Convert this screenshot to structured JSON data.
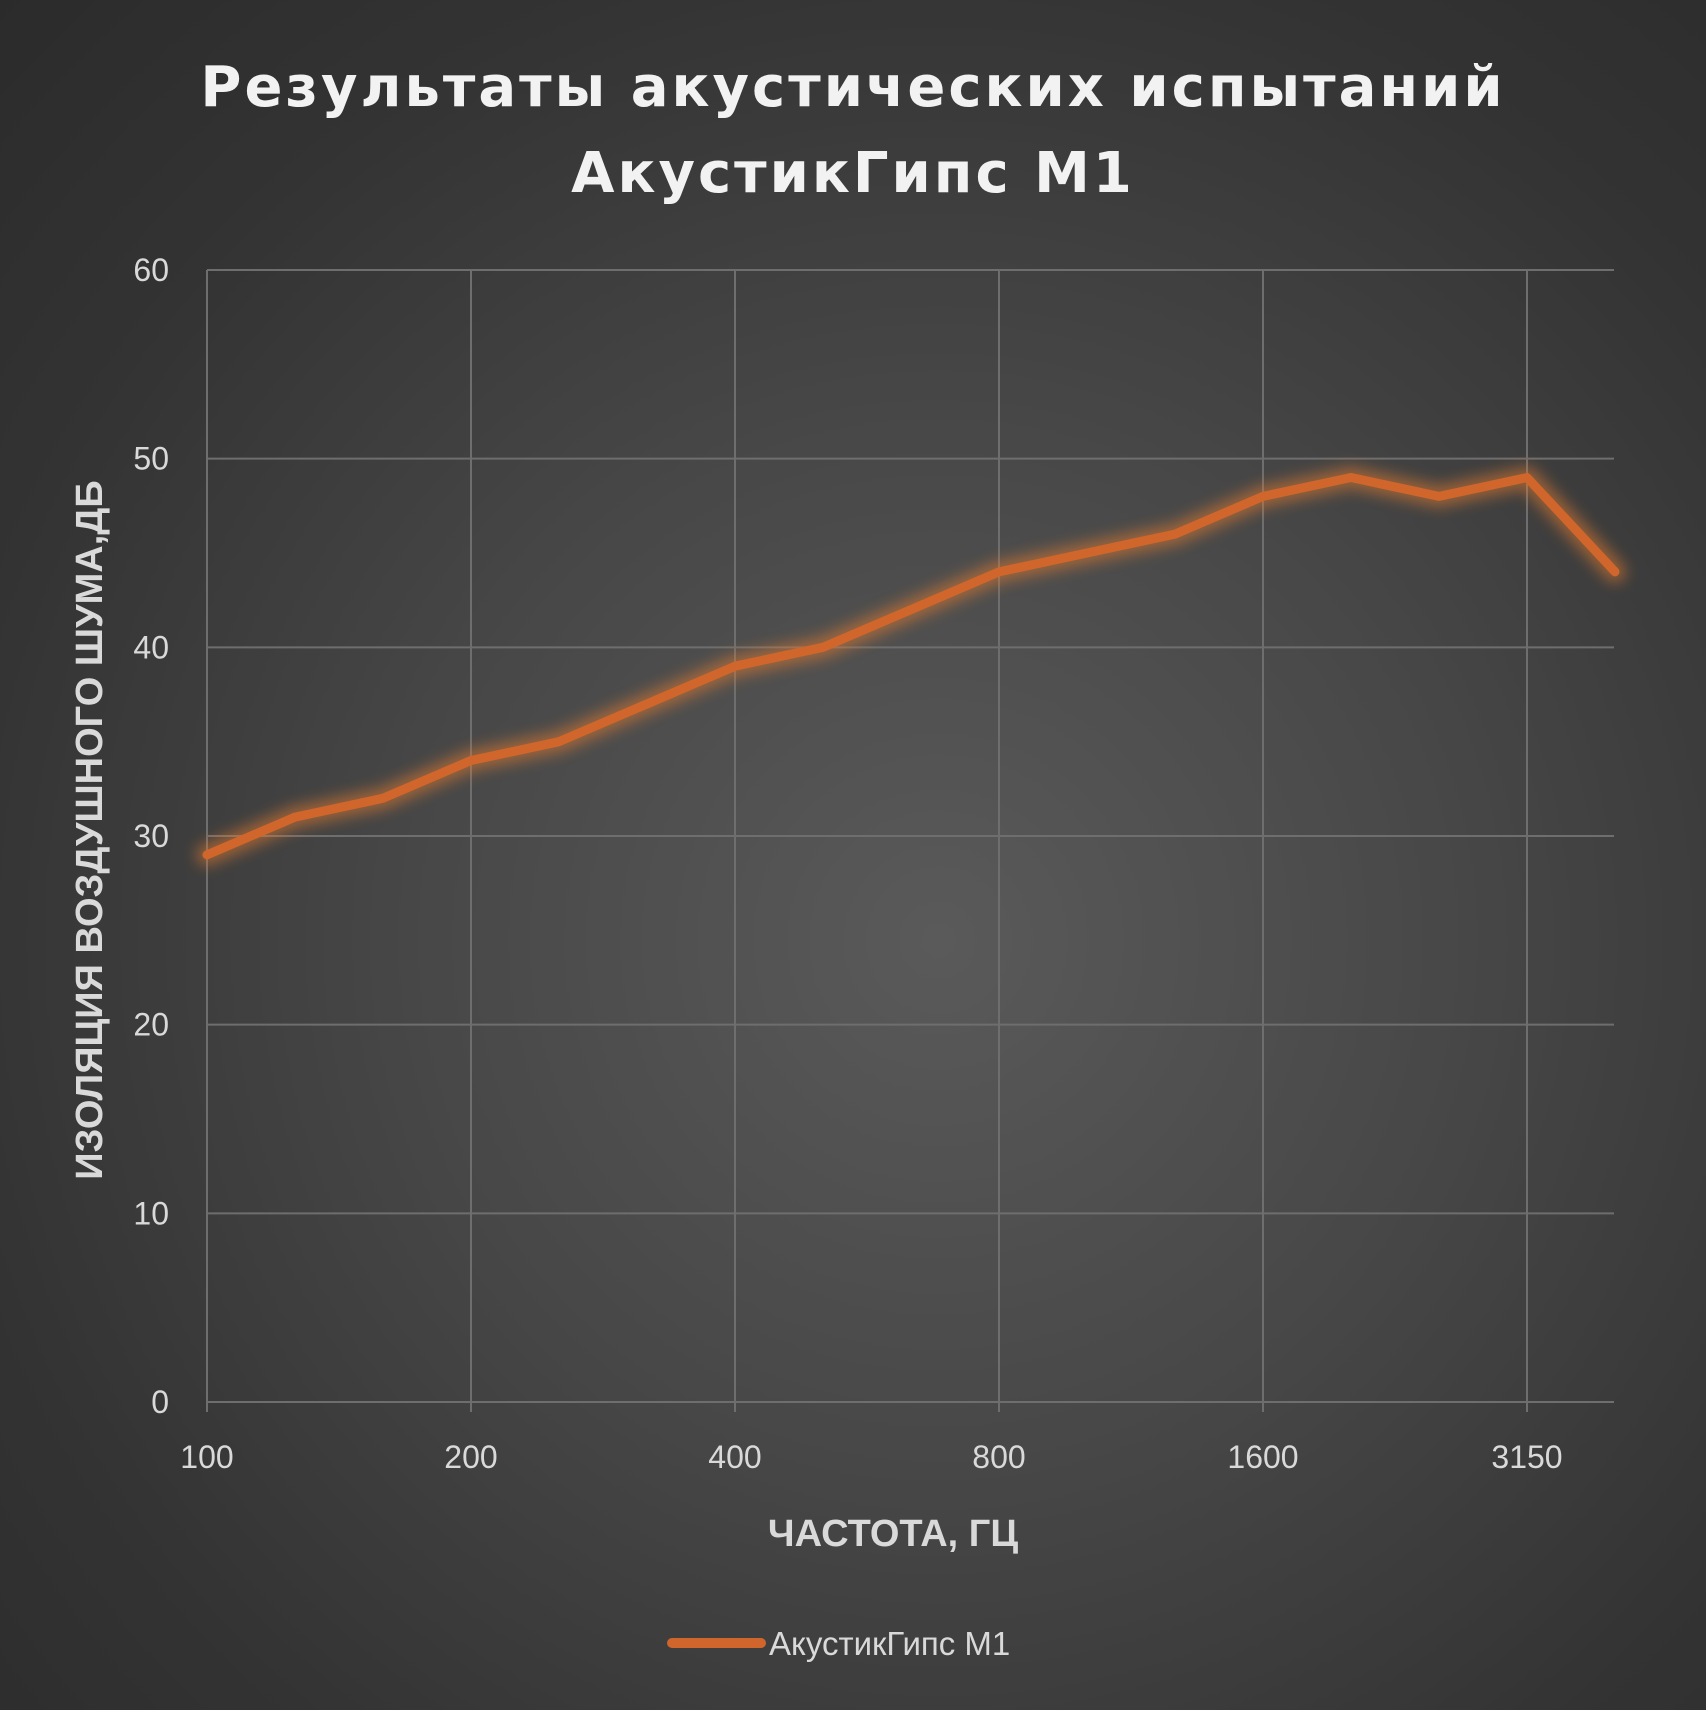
{
  "chart_data": {
    "type": "line",
    "title_lines": [
      "Результаты акустических испытаний",
      "АкустикГипс М1"
    ],
    "xlabel": "ЧАСТОТА, ГЦ",
    "ylabel": "ИЗОЛЯЦИЯ ВОЗДУШНОГО ШУМА,ДБ",
    "ylim": [
      0,
      60
    ],
    "yticks": [
      0,
      10,
      20,
      30,
      40,
      50,
      60
    ],
    "x_tick_labels": [
      {
        "index": 0,
        "label": "100"
      },
      {
        "index": 3,
        "label": "200"
      },
      {
        "index": 6,
        "label": "400"
      },
      {
        "index": 9,
        "label": "800"
      },
      {
        "index": 12,
        "label": "1600"
      },
      {
        "index": 15,
        "label": "3150"
      }
    ],
    "grid": true,
    "legend_position": "bottom",
    "series": [
      {
        "name": "АкустикГипс М1",
        "color": "#d0662b",
        "values": [
          29,
          31,
          32,
          34,
          35,
          37,
          39,
          40,
          42,
          44,
          45,
          46,
          48,
          49,
          48,
          49,
          44
        ]
      }
    ]
  }
}
